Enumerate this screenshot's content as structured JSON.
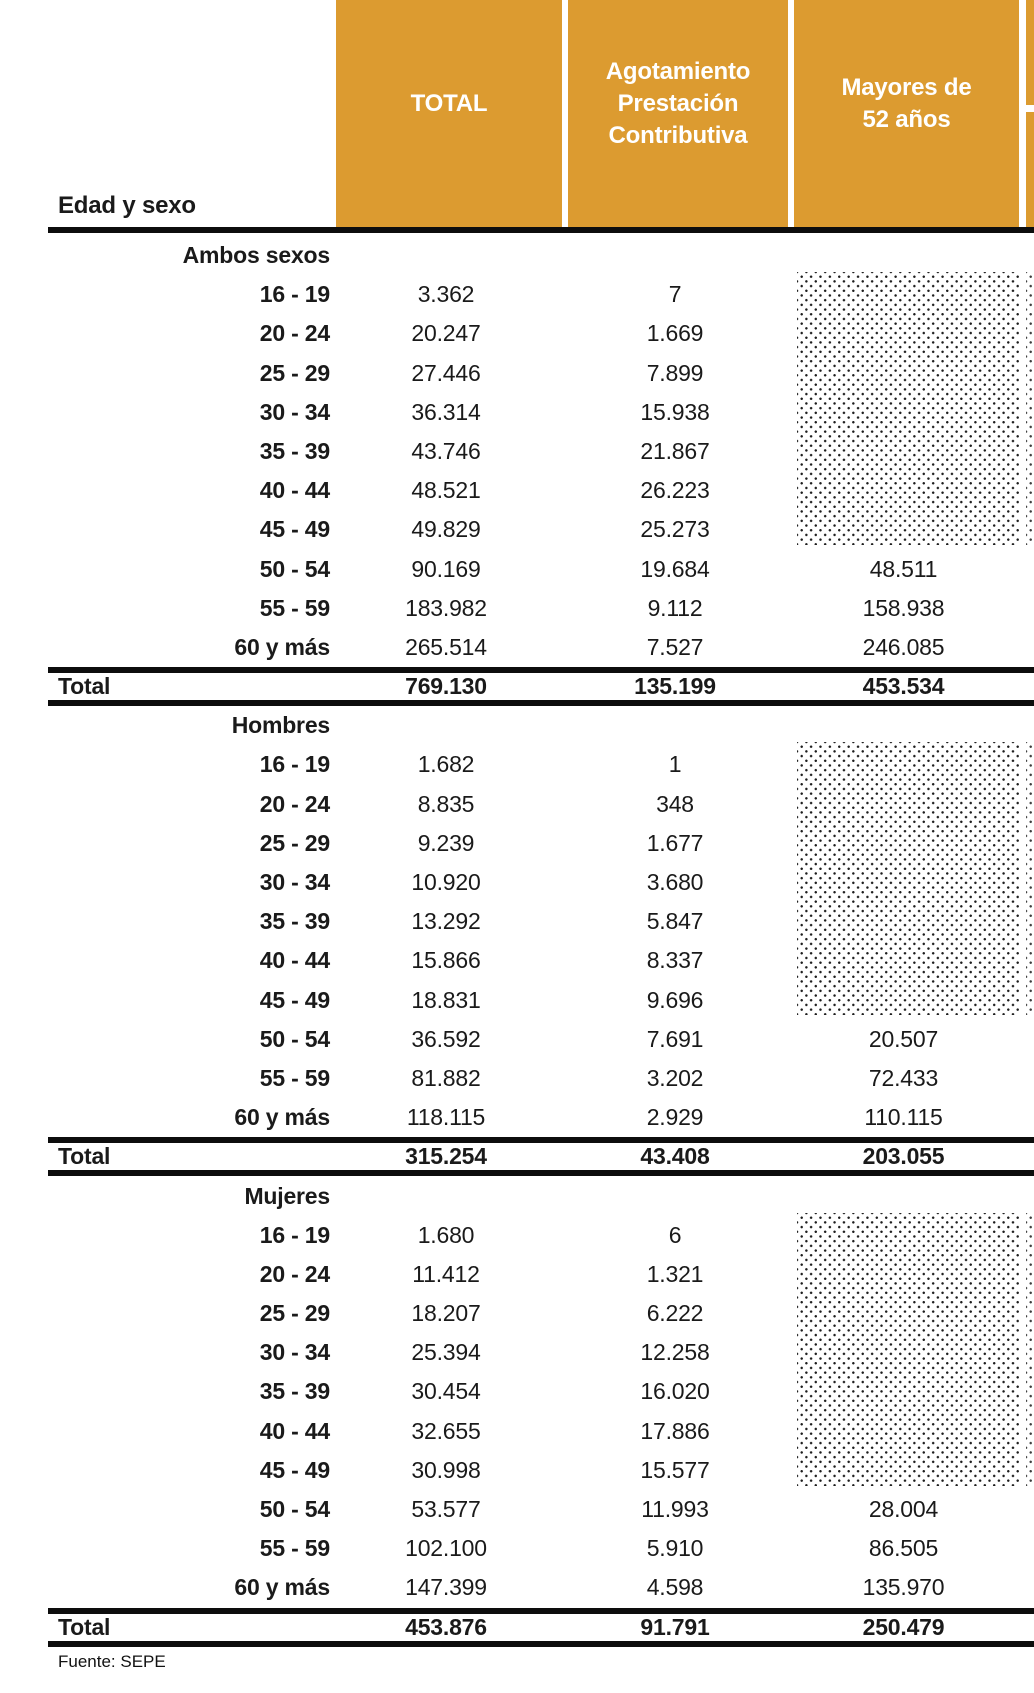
{
  "corner_label": "Edad y sexo",
  "columns": [
    {
      "label": "TOTAL"
    },
    {
      "label": "Agotamiento Prestación Contributiva"
    },
    {
      "label": "Mayores de 52 años"
    }
  ],
  "sections": [
    {
      "group": "Ambos sexos",
      "rows": [
        {
          "age": "16 - 19",
          "total": "3.362",
          "agotamiento": "7",
          "mayores": ""
        },
        {
          "age": "20 - 24",
          "total": "20.247",
          "agotamiento": "1.669",
          "mayores": ""
        },
        {
          "age": "25 - 29",
          "total": "27.446",
          "agotamiento": "7.899",
          "mayores": ""
        },
        {
          "age": "30 - 34",
          "total": "36.314",
          "agotamiento": "15.938",
          "mayores": ""
        },
        {
          "age": "35 - 39",
          "total": "43.746",
          "agotamiento": "21.867",
          "mayores": ""
        },
        {
          "age": "40 - 44",
          "total": "48.521",
          "agotamiento": "26.223",
          "mayores": ""
        },
        {
          "age": "45 - 49",
          "total": "49.829",
          "agotamiento": "25.273",
          "mayores": ""
        },
        {
          "age": "50 - 54",
          "total": "90.169",
          "agotamiento": "19.684",
          "mayores": "48.511"
        },
        {
          "age": "55 - 59",
          "total": "183.982",
          "agotamiento": "9.112",
          "mayores": "158.938"
        },
        {
          "age": "60 y más",
          "total": "265.514",
          "agotamiento": "7.527",
          "mayores": "246.085"
        }
      ],
      "total_row": {
        "label": "Total",
        "total": "769.130",
        "agotamiento": "135.199",
        "mayores": "453.534"
      }
    },
    {
      "group": "Hombres",
      "rows": [
        {
          "age": "16 - 19",
          "total": "1.682",
          "agotamiento": "1",
          "mayores": ""
        },
        {
          "age": "20 - 24",
          "total": "8.835",
          "agotamiento": "348",
          "mayores": ""
        },
        {
          "age": "25 - 29",
          "total": "9.239",
          "agotamiento": "1.677",
          "mayores": ""
        },
        {
          "age": "30 - 34",
          "total": "10.920",
          "agotamiento": "3.680",
          "mayores": ""
        },
        {
          "age": "35 - 39",
          "total": "13.292",
          "agotamiento": "5.847",
          "mayores": ""
        },
        {
          "age": "40 - 44",
          "total": "15.866",
          "agotamiento": "8.337",
          "mayores": ""
        },
        {
          "age": "45 - 49",
          "total": "18.831",
          "agotamiento": "9.696",
          "mayores": ""
        },
        {
          "age": "50 - 54",
          "total": "36.592",
          "agotamiento": "7.691",
          "mayores": "20.507"
        },
        {
          "age": "55 - 59",
          "total": "81.882",
          "agotamiento": "3.202",
          "mayores": "72.433"
        },
        {
          "age": "60 y más",
          "total": "118.115",
          "agotamiento": "2.929",
          "mayores": "110.115"
        }
      ],
      "total_row": {
        "label": "Total",
        "total": "315.254",
        "agotamiento": "43.408",
        "mayores": "203.055"
      }
    },
    {
      "group": "Mujeres",
      "rows": [
        {
          "age": "16 - 19",
          "total": "1.680",
          "agotamiento": "6",
          "mayores": ""
        },
        {
          "age": "20 - 24",
          "total": "11.412",
          "agotamiento": "1.321",
          "mayores": ""
        },
        {
          "age": "25 - 29",
          "total": "18.207",
          "agotamiento": "6.222",
          "mayores": ""
        },
        {
          "age": "30 - 34",
          "total": "25.394",
          "agotamiento": "12.258",
          "mayores": ""
        },
        {
          "age": "35 - 39",
          "total": "30.454",
          "agotamiento": "16.020",
          "mayores": ""
        },
        {
          "age": "40 - 44",
          "total": "32.655",
          "agotamiento": "17.886",
          "mayores": ""
        },
        {
          "age": "45 - 49",
          "total": "30.998",
          "agotamiento": "15.577",
          "mayores": ""
        },
        {
          "age": "50 - 54",
          "total": "53.577",
          "agotamiento": "11.993",
          "mayores": "28.004"
        },
        {
          "age": "55 - 59",
          "total": "102.100",
          "agotamiento": "5.910",
          "mayores": "86.505"
        },
        {
          "age": "60 y más",
          "total": "147.399",
          "agotamiento": "4.598",
          "mayores": "135.970"
        }
      ],
      "total_row": {
        "label": "Total",
        "total": "453.876",
        "agotamiento": "91.791",
        "mayores": "250.479"
      }
    }
  ],
  "footer": {
    "source": "Fuente: SEPE"
  },
  "colors": {
    "header_orange": "#DC9B30",
    "rule_black": "#0d0d0d",
    "dot_color": "#1c1c1c"
  }
}
